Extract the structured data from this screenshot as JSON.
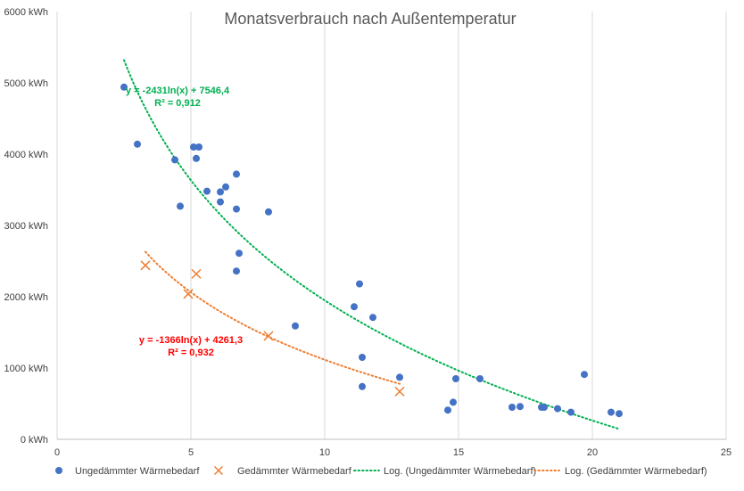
{
  "chart_data": {
    "type": "scatter",
    "title": "Monatsverbrauch nach Außentemperatur",
    "xlabel": "",
    "ylabel": "",
    "xlim": [
      0,
      25
    ],
    "ylim": [
      0,
      6000
    ],
    "x_ticks": [
      "0",
      "5",
      "10",
      "15",
      "20",
      "25"
    ],
    "y_ticks": [
      "0 kWh",
      "1000 kWh",
      "2000 kWh",
      "3000 kWh",
      "4000 kWh",
      "5000 kWh",
      "6000 kWh"
    ],
    "grid": "vertical",
    "legend_position": "bottom",
    "series": [
      {
        "name": "Ungedämmter Wärmebedarf",
        "marker": "circle",
        "color": "#4472C4",
        "points": [
          [
            2.5,
            4940
          ],
          [
            3.0,
            4140
          ],
          [
            4.4,
            3920
          ],
          [
            4.6,
            3270
          ],
          [
            5.1,
            4100
          ],
          [
            5.3,
            4100
          ],
          [
            5.2,
            3940
          ],
          [
            5.6,
            3480
          ],
          [
            6.1,
            3470
          ],
          [
            6.1,
            3330
          ],
          [
            6.3,
            3540
          ],
          [
            6.7,
            3720
          ],
          [
            6.7,
            3230
          ],
          [
            7.9,
            3190
          ],
          [
            6.8,
            2610
          ],
          [
            6.7,
            2360
          ],
          [
            8.9,
            1590
          ],
          [
            11.1,
            1860
          ],
          [
            11.3,
            2180
          ],
          [
            11.8,
            1710
          ],
          [
            11.4,
            1150
          ],
          [
            11.4,
            740
          ],
          [
            12.8,
            870
          ],
          [
            14.6,
            410
          ],
          [
            14.8,
            520
          ],
          [
            14.9,
            850
          ],
          [
            15.8,
            850
          ],
          [
            17.0,
            450
          ],
          [
            17.3,
            460
          ],
          [
            18.1,
            450
          ],
          [
            18.2,
            450
          ],
          [
            18.7,
            430
          ],
          [
            19.2,
            380
          ],
          [
            19.7,
            910
          ],
          [
            20.7,
            380
          ],
          [
            21.0,
            360
          ]
        ]
      },
      {
        "name": "Gedämmter Wärmebedarf",
        "marker": "x",
        "color": "#ED7D31",
        "points": [
          [
            3.3,
            2440
          ],
          [
            4.9,
            2040
          ],
          [
            5.2,
            2320
          ],
          [
            7.9,
            1450
          ],
          [
            12.8,
            670
          ]
        ]
      }
    ],
    "trendlines": [
      {
        "name": "Log. (Ungedämmter Wärmebedarf)",
        "type": "log",
        "a": -2431,
        "b": 7546.4,
        "x_range": [
          2.5,
          21.0
        ],
        "color": "#00B050",
        "equation": "y = -2431ln(x) + 7546,4",
        "r2": "R² = 0,912",
        "equation_color": "#00B050",
        "label_at": [
          4.5,
          4850
        ]
      },
      {
        "name": "Log. (Gedämmter Wärmebedarf)",
        "type": "log",
        "a": -1366,
        "b": 4261.3,
        "x_range": [
          3.3,
          12.8
        ],
        "color": "#ED7D31",
        "equation": "y = -1366ln(x) + 4261,3",
        "r2": "R² = 0,932",
        "equation_color": "#FF0000",
        "label_at": [
          5.0,
          1350
        ]
      }
    ]
  }
}
